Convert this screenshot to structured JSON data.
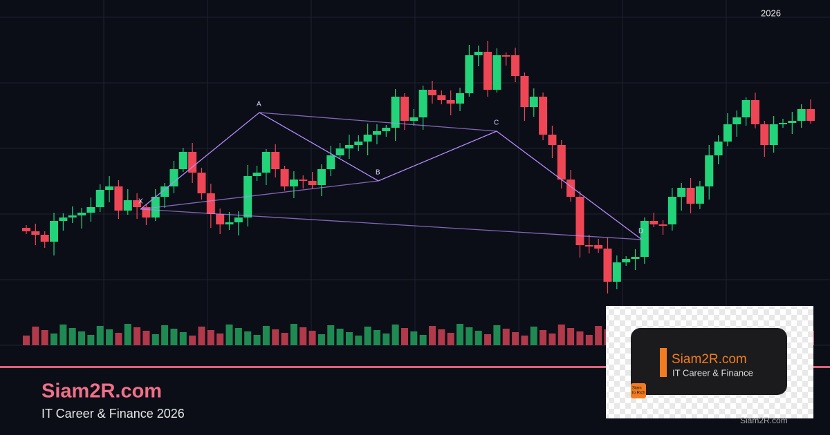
{
  "header": {
    "year": "2026"
  },
  "pattern": {
    "points": [
      "X",
      "A",
      "B",
      "C",
      "D"
    ]
  },
  "brand": {
    "title": "Siam2R.com",
    "subtitle": "IT Career & Finance 2026"
  },
  "logo": {
    "title": "Siam2R.com",
    "subtitle": "IT Career & Finance",
    "badge": [
      "Siam",
      "to Rich"
    ]
  },
  "watermark": "Siam2R.com"
}
